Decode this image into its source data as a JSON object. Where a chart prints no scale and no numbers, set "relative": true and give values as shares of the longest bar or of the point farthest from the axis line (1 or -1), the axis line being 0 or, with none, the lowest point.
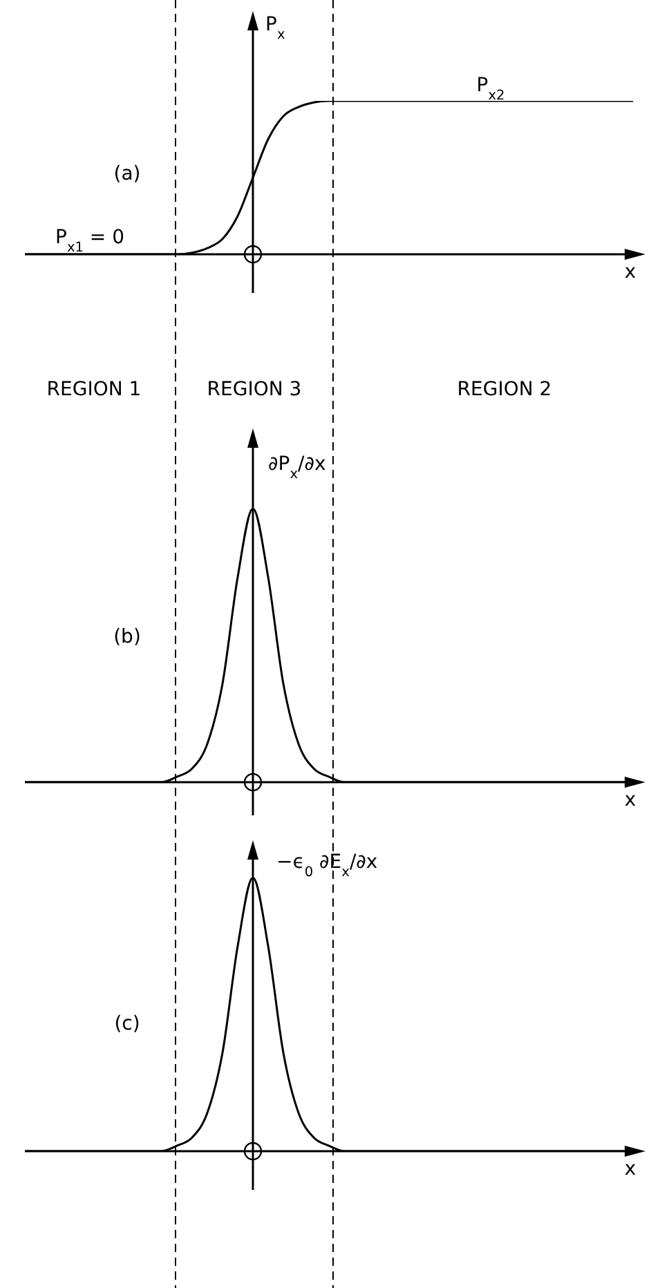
{
  "chart_data": [
    {
      "type": "line",
      "title": "(a)",
      "ylabel": "P$_{x}$",
      "xlabel": "x",
      "relative": true,
      "tick_labels": false,
      "color": "#000000",
      "categories": [
        null,
        null,
        null,
        null,
        null,
        null,
        null,
        null,
        null,
        null,
        null,
        null,
        null,
        null,
        null,
        null,
        null,
        null,
        null,
        null,
        null,
        null,
        null,
        null,
        null,
        null,
        null,
        null,
        null,
        null,
        null,
        null,
        null,
        null,
        null,
        null,
        null,
        null,
        null,
        null,
        null
      ],
      "values": [
        0,
        0,
        0,
        0,
        0,
        0,
        0,
        0,
        0,
        0,
        0,
        0.01,
        0.04,
        0.1,
        0.25,
        0.5,
        0.75,
        0.9,
        0.96,
        0.99,
        1,
        1,
        1,
        1,
        1,
        1,
        1,
        1,
        1,
        1,
        1,
        1,
        1,
        1,
        1,
        1,
        1,
        1,
        1,
        1,
        1
      ],
      "annotations": [
        "P$_{x1}$ = 0",
        "P$_{x2}$",
        "REGION 1",
        "REGION 3",
        "REGION 2"
      ]
    },
    {
      "type": "line",
      "title": "(b)",
      "ylabel": "∂P$_{x}$/∂x",
      "xlabel": "x",
      "relative": true,
      "tick_labels": false,
      "color": "#000000",
      "categories": [
        null,
        null,
        null,
        null,
        null,
        null,
        null,
        null,
        null,
        null,
        null,
        null,
        null,
        null,
        null,
        null,
        null,
        null,
        null,
        null,
        null,
        null,
        null,
        null,
        null,
        null,
        null,
        null,
        null,
        null,
        null,
        null,
        null,
        null,
        null,
        null,
        null,
        null,
        null,
        null,
        null
      ],
      "values": [
        0,
        0,
        0,
        0,
        0,
        0,
        0,
        0,
        0,
        0,
        0.02,
        0.05,
        0.14,
        0.36,
        0.75,
        1,
        0.75,
        0.36,
        0.14,
        0.05,
        0.02,
        0,
        0,
        0,
        0,
        0,
        0,
        0,
        0,
        0,
        0,
        0,
        0,
        0,
        0,
        0,
        0,
        0,
        0,
        0,
        0
      ]
    },
    {
      "type": "line",
      "title": "(c)",
      "ylabel": "−ϵ$_{0}$ ∂E$_{x}$/∂x",
      "xlabel": "x",
      "relative": true,
      "tick_labels": false,
      "color": "#000000",
      "categories": [
        null,
        null,
        null,
        null,
        null,
        null,
        null,
        null,
        null,
        null,
        null,
        null,
        null,
        null,
        null,
        null,
        null,
        null,
        null,
        null,
        null,
        null,
        null,
        null,
        null,
        null,
        null,
        null,
        null,
        null,
        null,
        null,
        null,
        null,
        null,
        null,
        null,
        null,
        null,
        null,
        null
      ],
      "values": [
        0,
        0,
        0,
        0,
        0,
        0,
        0,
        0,
        0,
        0,
        0.02,
        0.05,
        0.14,
        0.36,
        0.75,
        1,
        0.75,
        0.36,
        0.14,
        0.05,
        0.02,
        0,
        0,
        0,
        0,
        0,
        0,
        0,
        0,
        0,
        0,
        0,
        0,
        0,
        0,
        0,
        0,
        0,
        0,
        0,
        0
      ]
    }
  ]
}
